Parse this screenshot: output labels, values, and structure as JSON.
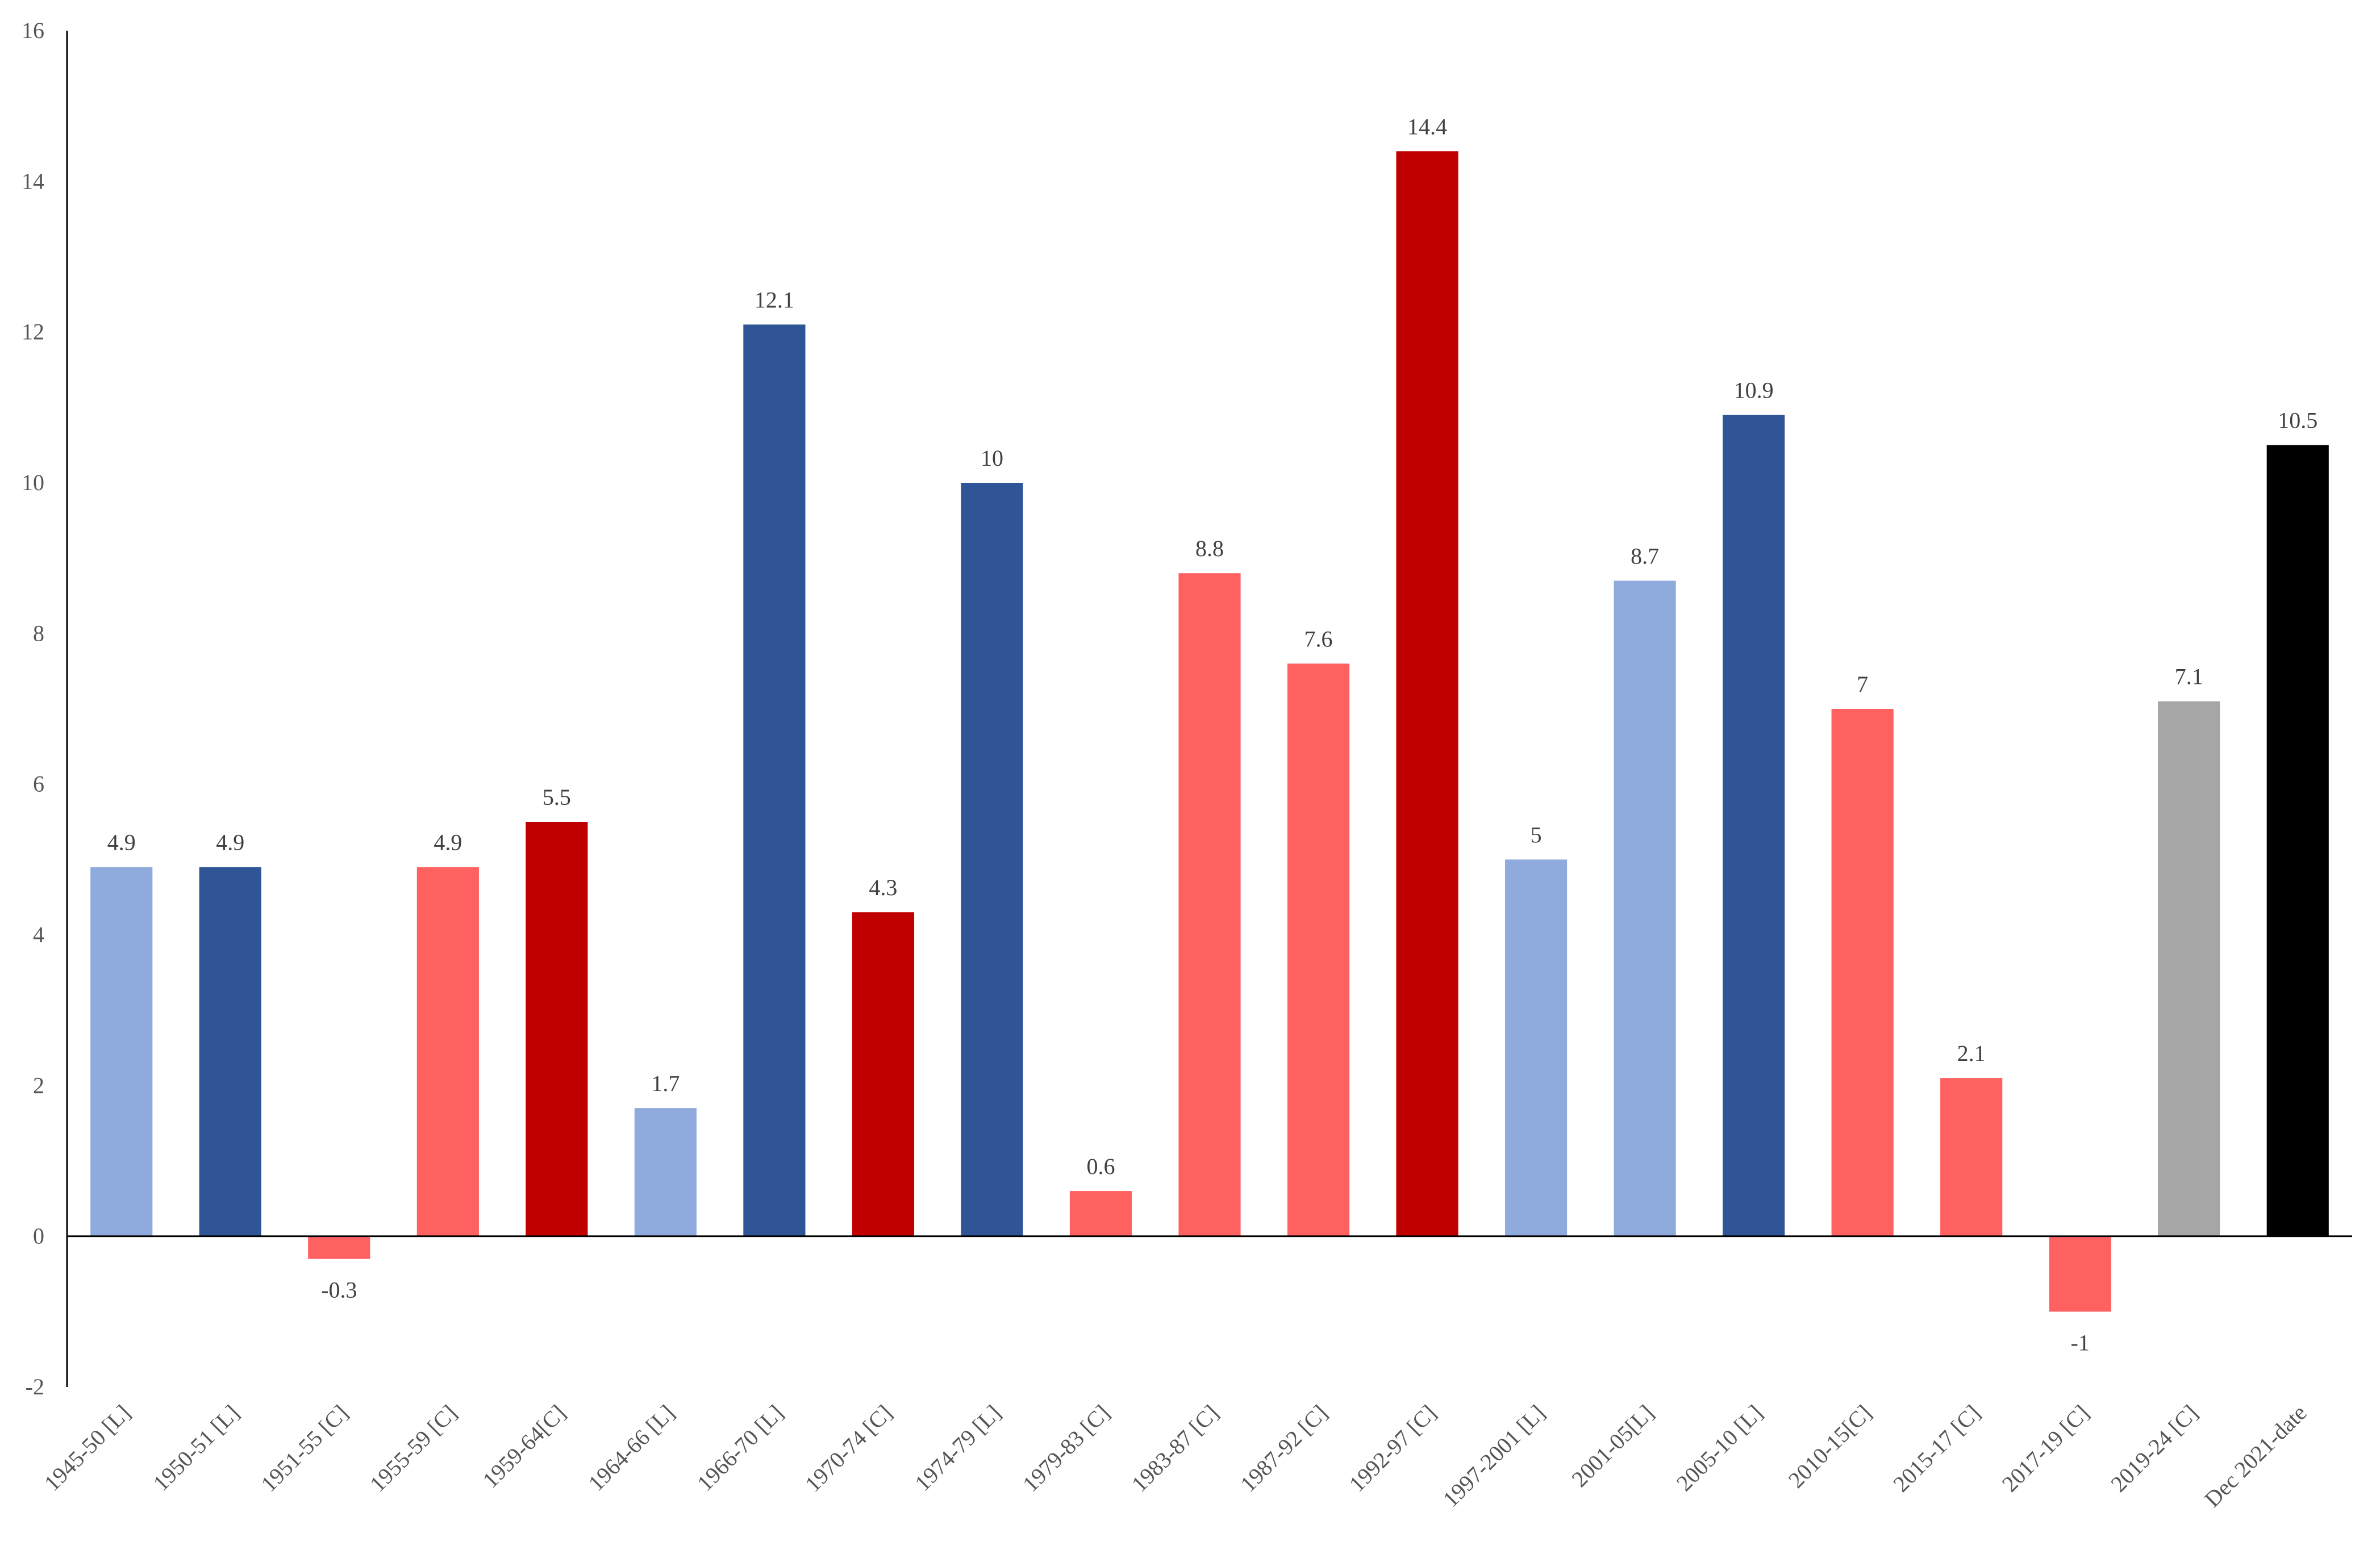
{
  "chart_data": {
    "type": "bar",
    "title": "",
    "xlabel": "",
    "ylabel": "",
    "ylim": [
      -2,
      16
    ],
    "yticks": [
      -2,
      0,
      2,
      4,
      6,
      8,
      10,
      12,
      14,
      16
    ],
    "grid": false,
    "legend": "none",
    "categories": [
      "1945-50 [L]",
      "1950-51 [L]",
      "1951-55 [C]",
      "1955-59 [C]",
      "1959-64[C]",
      "1964-66 [L]",
      "1966-70 [L]",
      "1970-74 [C]",
      "1974-79 [L]",
      "1979-83 [C]",
      "1983-87 [C]",
      "1987-92 [C]",
      "1992-97 [C]",
      "1997-2001 [L]",
      "2001-05[L]",
      "2005-10 [L]",
      "2010-15[C]",
      "2015-17 [C]",
      "2017-19 [C]",
      "2019-24 [C]",
      "Dec 2021-date"
    ],
    "values": [
      4.9,
      4.9,
      -0.3,
      4.9,
      5.5,
      1.7,
      12.1,
      4.3,
      10,
      0.6,
      8.8,
      7.6,
      14.4,
      5,
      8.7,
      10.9,
      7,
      2.1,
      -1,
      7.1,
      10.5
    ],
    "data_labels": [
      "4.9",
      "4.9",
      "-0.3",
      "4.9",
      "5.5",
      "1.7",
      "12.1",
      "4.3",
      "10",
      "0.6",
      "8.8",
      "7.6",
      "14.4",
      "5",
      "8.7",
      "10.9",
      "7",
      "2.1",
      "-1",
      "7.1",
      "10.5"
    ],
    "bar_colors": [
      "#8faadc",
      "#2f5597",
      "#ff6161",
      "#ff6161",
      "#c00000",
      "#8faadc",
      "#2f5597",
      "#c00000",
      "#2f5597",
      "#ff6161",
      "#ff6161",
      "#ff6161",
      "#c00000",
      "#8faadc",
      "#8faadc",
      "#2f5597",
      "#ff6161",
      "#ff6161",
      "#ff6161",
      "#a6a6a6",
      "#000000"
    ]
  }
}
